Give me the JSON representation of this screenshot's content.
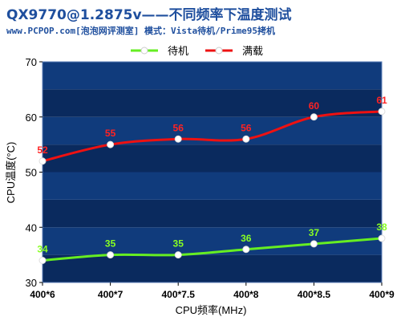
{
  "title": "QX9770@1.2875v——不同频率下温度测试",
  "subtitle": "www.PCPOP.com[泡泡网评测室] 模式：Vista待机/Prime95拷机",
  "colors": {
    "plot_band_dark": "#0a2a5e",
    "plot_band_light": "#103b7c",
    "idle_line": "#66ee22",
    "load_line": "#ee1111",
    "idle_label": "#88ff22",
    "load_label": "#ff2222",
    "title": "#1f4f9e"
  },
  "chart_data": {
    "type": "line",
    "x": [
      "400*6",
      "400*7",
      "400*7.5",
      "400*8",
      "400*8.5",
      "400*9"
    ],
    "series": [
      {
        "name": "待机",
        "values": [
          34,
          35,
          35,
          36,
          37,
          38
        ],
        "color": "#66ee22"
      },
      {
        "name": "满载",
        "values": [
          52,
          55,
          56,
          56,
          60,
          61
        ],
        "color": "#ee1111"
      }
    ],
    "xlabel": "CPU频率(MHz)",
    "ylabel": "CPU温度(°C)",
    "ylim": [
      30,
      70
    ],
    "yticks": [
      30,
      40,
      50,
      60,
      70
    ],
    "legend_position": "top",
    "grid": true
  }
}
